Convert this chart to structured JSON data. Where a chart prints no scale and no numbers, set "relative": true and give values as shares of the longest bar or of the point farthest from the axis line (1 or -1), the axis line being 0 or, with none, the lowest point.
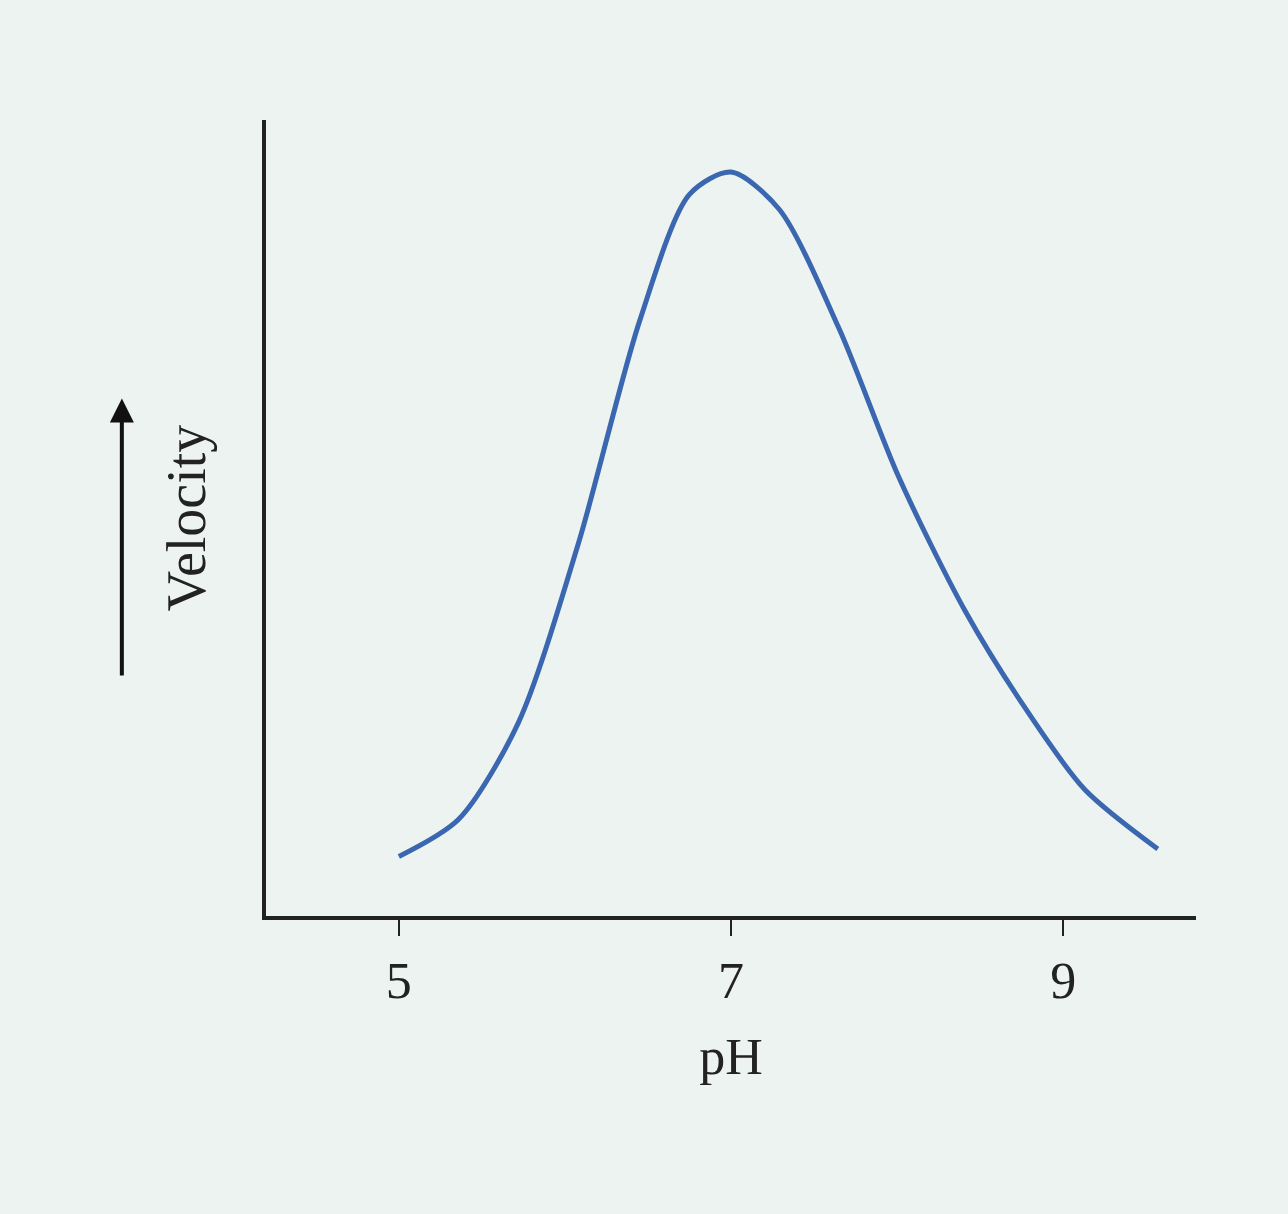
{
  "chart_data": {
    "type": "line",
    "xlabel": "pH",
    "ylabel": "Velocity",
    "relative": true,
    "x": [
      5.0,
      5.36,
      5.72,
      6.08,
      6.45,
      6.75,
      7.0,
      7.29,
      7.65,
      8.01,
      8.41,
      8.77,
      9.13,
      9.57
    ],
    "series": [
      {
        "color": "#3a67b0",
        "values": [
          0.08,
          0.13,
          0.26,
          0.5,
          0.8,
          0.97,
          1.0,
          0.95,
          0.79,
          0.59,
          0.41,
          0.28,
          0.17,
          0.09
        ]
      }
    ],
    "xlim": [
      4.2,
      9.8
    ],
    "xticks": [
      5,
      7,
      9
    ],
    "grid": false,
    "marker": "none",
    "line_style": "solid"
  }
}
